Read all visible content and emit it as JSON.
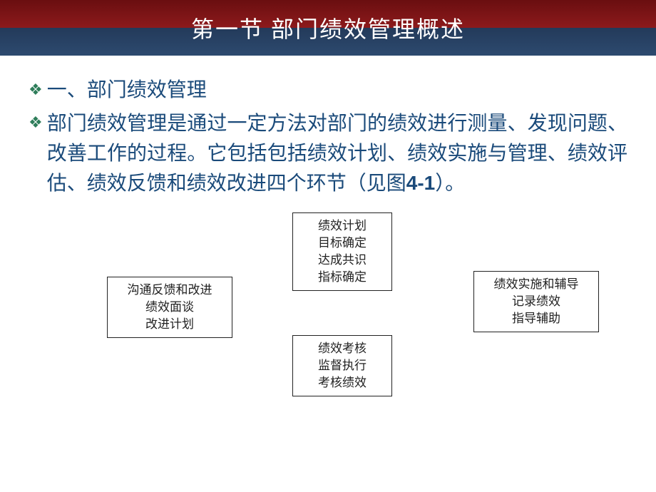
{
  "title": "第一节 部门绩效管理概述",
  "bullet1": "一、部门绩效管理",
  "para_full": "部门绩效管理是通过一定方法对部门的绩效进行测量、发现问题、改善工作的过程。它包括包括绩效计划、绩效实施与管理、绩效评估、绩效反馈和绩效改进四个环节（见图",
  "para_ref": "4-1",
  "para_tail": "）。",
  "diagram": {
    "top": {
      "l1": "绩效计划",
      "l2": "目标确定",
      "l3": "达成共识",
      "l4": "指标确定"
    },
    "left": {
      "l1": "沟通反馈和改进",
      "l2": "绩效面谈",
      "l3": "改进计划"
    },
    "right": {
      "l1": "绩效实施和辅导",
      "l2": "记录绩效",
      "l3": "指导辅助"
    },
    "bottom": {
      "l1": "绩效考核",
      "l2": "监督执行",
      "l3": "考核绩效"
    }
  },
  "style": {
    "title_gradient_top": "#8d1a1c",
    "title_gradient_bottom": "#2d4a6f",
    "title_color": "#ffffff",
    "bullet_color": "#2e7d5a",
    "body_text_color": "#1a4a7a",
    "box_border": "#222222",
    "box_text": "#222222",
    "background": "#ffffff",
    "title_fontsize": 32,
    "body_fontsize": 28,
    "box_fontsize": 17
  }
}
